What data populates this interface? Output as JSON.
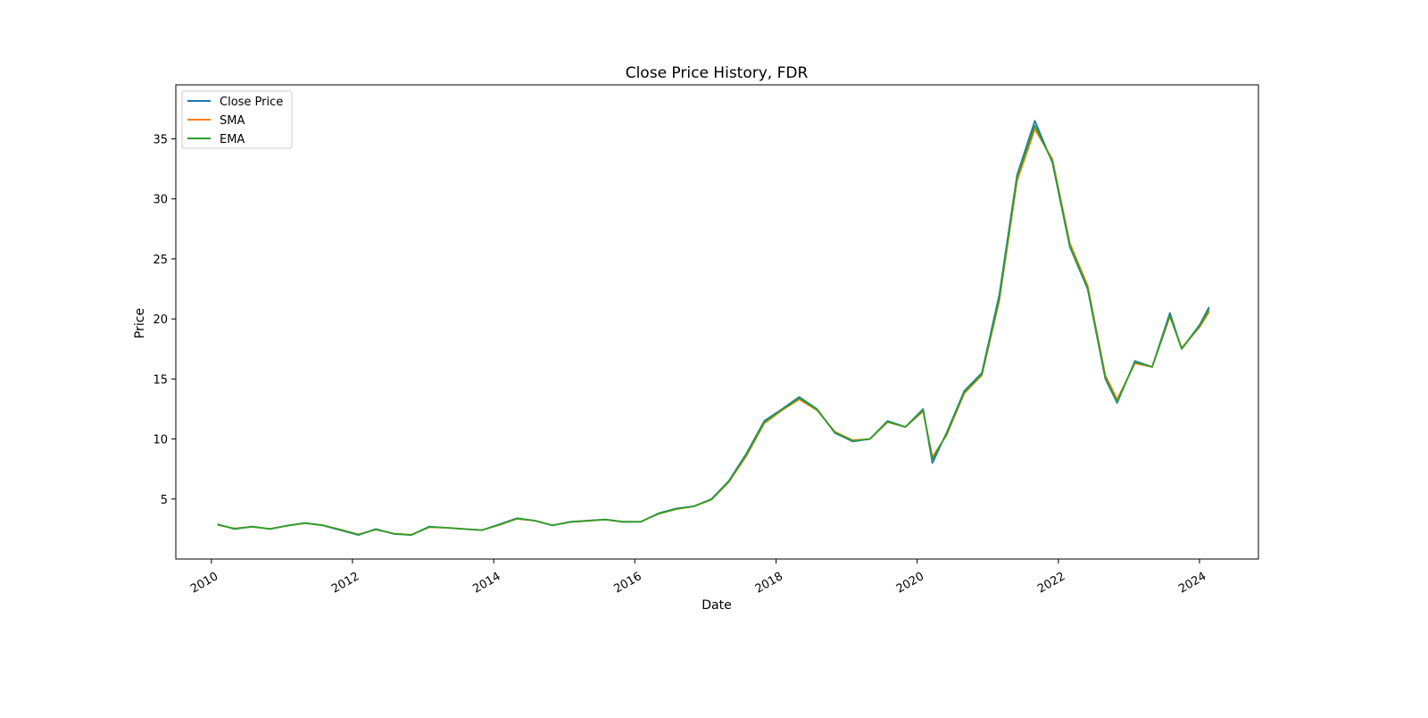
{
  "chart_data": {
    "type": "line",
    "title": "Close Price History, FDR",
    "xlabel": "Date",
    "ylabel": "Price",
    "xlim": [
      "2009-07-01",
      "2024-11-01"
    ],
    "ylim": [
      0.0,
      39.5
    ],
    "x_ticks": [
      "2010",
      "2012",
      "2014",
      "2016",
      "2018",
      "2020",
      "2022",
      "2024"
    ],
    "y_ticks": [
      5,
      10,
      15,
      20,
      25,
      30,
      35
    ],
    "grid": false,
    "legend": "upper left",
    "series": [
      {
        "name": "Close Price",
        "color": "#1f77b4",
        "x": [
          "2010-02-01",
          "2010-05-01",
          "2010-08-01",
          "2010-11-01",
          "2011-02-01",
          "2011-05-01",
          "2011-08-01",
          "2011-11-01",
          "2012-02-01",
          "2012-05-01",
          "2012-08-01",
          "2012-11-01",
          "2013-02-01",
          "2013-05-01",
          "2013-08-01",
          "2013-11-01",
          "2014-02-01",
          "2014-05-01",
          "2014-08-01",
          "2014-11-01",
          "2015-02-01",
          "2015-05-01",
          "2015-08-01",
          "2015-11-01",
          "2016-02-01",
          "2016-05-01",
          "2016-08-01",
          "2016-11-01",
          "2017-02-01",
          "2017-05-01",
          "2017-08-01",
          "2017-11-01",
          "2018-02-01",
          "2018-05-01",
          "2018-08-01",
          "2018-11-01",
          "2019-02-01",
          "2019-05-01",
          "2019-08-01",
          "2019-11-01",
          "2020-02-01",
          "2020-03-20",
          "2020-06-01",
          "2020-09-01",
          "2020-12-01",
          "2021-03-01",
          "2021-06-01",
          "2021-09-01",
          "2021-12-01",
          "2022-03-01",
          "2022-06-01",
          "2022-09-01",
          "2022-11-01",
          "2023-02-01",
          "2023-05-01",
          "2023-08-01",
          "2023-10-01",
          "2024-01-01",
          "2024-02-20"
        ],
        "values": [
          2.9,
          2.5,
          2.7,
          2.5,
          2.8,
          3.0,
          2.8,
          2.4,
          2.0,
          2.5,
          2.1,
          2.0,
          2.7,
          2.6,
          2.5,
          2.4,
          2.9,
          3.4,
          3.2,
          2.8,
          3.1,
          3.2,
          3.3,
          3.1,
          3.1,
          3.8,
          4.2,
          4.4,
          5.0,
          6.5,
          8.8,
          11.5,
          12.5,
          13.5,
          12.5,
          10.5,
          9.8,
          10.0,
          11.5,
          11.0,
          12.5,
          8.0,
          10.5,
          14.0,
          15.5,
          22.0,
          32.0,
          36.5,
          33.0,
          26.0,
          22.5,
          15.0,
          13.0,
          16.5,
          16.0,
          20.5,
          17.5,
          19.5,
          21.0
        ]
      },
      {
        "name": "SMA",
        "color": "#ff7f0e",
        "x": [
          "2010-02-01",
          "2010-05-01",
          "2010-08-01",
          "2010-11-01",
          "2011-02-01",
          "2011-05-01",
          "2011-08-01",
          "2011-11-01",
          "2012-02-01",
          "2012-05-01",
          "2012-08-01",
          "2012-11-01",
          "2013-02-01",
          "2013-05-01",
          "2013-08-01",
          "2013-11-01",
          "2014-02-01",
          "2014-05-01",
          "2014-08-01",
          "2014-11-01",
          "2015-02-01",
          "2015-05-01",
          "2015-08-01",
          "2015-11-01",
          "2016-02-01",
          "2016-05-01",
          "2016-08-01",
          "2016-11-01",
          "2017-02-01",
          "2017-05-01",
          "2017-08-01",
          "2017-11-01",
          "2018-02-01",
          "2018-05-01",
          "2018-08-01",
          "2018-11-01",
          "2019-02-01",
          "2019-05-01",
          "2019-08-01",
          "2019-11-01",
          "2020-02-01",
          "2020-03-20",
          "2020-06-01",
          "2020-09-01",
          "2020-12-01",
          "2021-03-01",
          "2021-06-01",
          "2021-09-01",
          "2021-12-01",
          "2022-03-01",
          "2022-06-01",
          "2022-09-01",
          "2022-11-01",
          "2023-02-01",
          "2023-05-01",
          "2023-08-01",
          "2023-10-01",
          "2024-01-01",
          "2024-02-20"
        ],
        "values": [
          2.85,
          2.55,
          2.68,
          2.52,
          2.78,
          2.98,
          2.82,
          2.45,
          2.05,
          2.45,
          2.12,
          2.02,
          2.65,
          2.6,
          2.5,
          2.42,
          2.85,
          3.35,
          3.2,
          2.82,
          3.08,
          3.18,
          3.28,
          3.1,
          3.12,
          3.75,
          4.15,
          4.38,
          4.95,
          6.4,
          8.6,
          11.3,
          12.4,
          13.3,
          12.4,
          10.6,
          9.9,
          10.0,
          11.4,
          11.0,
          12.3,
          8.5,
          10.3,
          13.8,
          15.3,
          21.5,
          31.5,
          35.8,
          33.3,
          26.3,
          22.8,
          15.3,
          13.3,
          16.3,
          16.0,
          20.2,
          17.6,
          19.3,
          20.6
        ]
      },
      {
        "name": "EMA",
        "color": "#2ca02c",
        "x": [
          "2010-02-01",
          "2010-05-01",
          "2010-08-01",
          "2010-11-01",
          "2011-02-01",
          "2011-05-01",
          "2011-08-01",
          "2011-11-01",
          "2012-02-01",
          "2012-05-01",
          "2012-08-01",
          "2012-11-01",
          "2013-02-01",
          "2013-05-01",
          "2013-08-01",
          "2013-11-01",
          "2014-02-01",
          "2014-05-01",
          "2014-08-01",
          "2014-11-01",
          "2015-02-01",
          "2015-05-01",
          "2015-08-01",
          "2015-11-01",
          "2016-02-01",
          "2016-05-01",
          "2016-08-01",
          "2016-11-01",
          "2017-02-01",
          "2017-05-01",
          "2017-08-01",
          "2017-11-01",
          "2018-02-01",
          "2018-05-01",
          "2018-08-01",
          "2018-11-01",
          "2019-02-01",
          "2019-05-01",
          "2019-08-01",
          "2019-11-01",
          "2020-02-01",
          "2020-03-20",
          "2020-06-01",
          "2020-09-01",
          "2020-12-01",
          "2021-03-01",
          "2021-06-01",
          "2021-09-01",
          "2021-12-01",
          "2022-03-01",
          "2022-06-01",
          "2022-09-01",
          "2022-11-01",
          "2023-02-01",
          "2023-05-01",
          "2023-08-01",
          "2023-10-01",
          "2024-01-01",
          "2024-02-20"
        ],
        "values": [
          2.87,
          2.53,
          2.69,
          2.51,
          2.79,
          2.99,
          2.81,
          2.43,
          2.03,
          2.47,
          2.11,
          2.01,
          2.67,
          2.61,
          2.5,
          2.41,
          2.87,
          3.37,
          3.2,
          2.81,
          3.09,
          3.19,
          3.29,
          3.1,
          3.11,
          3.77,
          4.17,
          4.39,
          4.97,
          6.45,
          8.7,
          11.4,
          12.45,
          13.4,
          12.45,
          10.55,
          9.85,
          10.0,
          11.45,
          11.0,
          12.4,
          8.3,
          10.4,
          13.9,
          15.4,
          21.7,
          31.8,
          36.1,
          33.1,
          26.1,
          22.6,
          15.1,
          13.1,
          16.4,
          16.0,
          20.3,
          17.5,
          19.4,
          20.8
        ]
      }
    ]
  }
}
